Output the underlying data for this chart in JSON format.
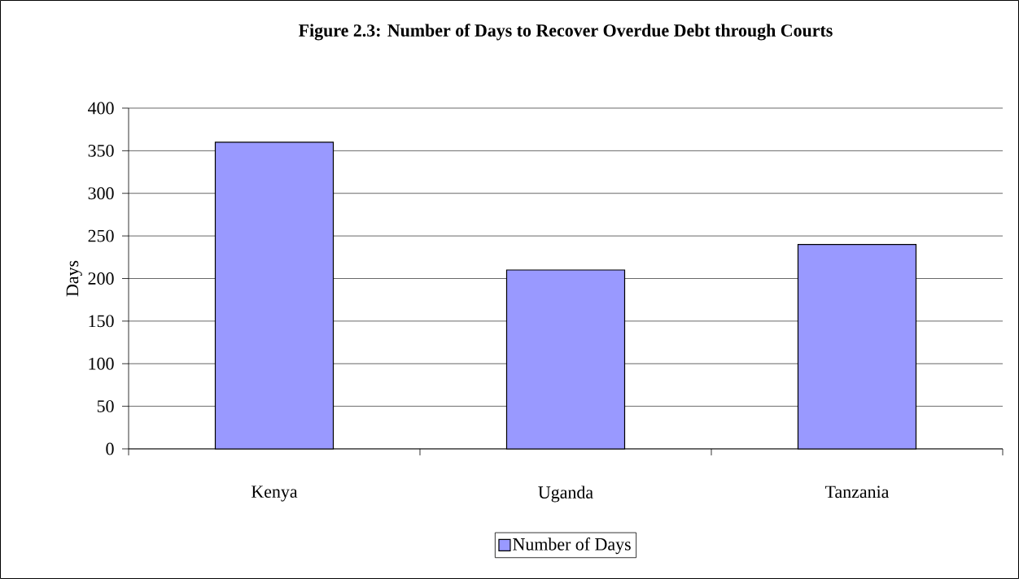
{
  "chart_data": {
    "type": "bar",
    "title": "Figure 2.3: Number of Days to Recover Overdue Debt through Courts",
    "ylabel": "Days",
    "categories": [
      "Kenya",
      "Uganda",
      "Tanzania"
    ],
    "series": [
      {
        "name": "Number of Days",
        "color": "#9999ff",
        "values": [
          360,
          210,
          240
        ]
      }
    ],
    "ylim": [
      0,
      400
    ],
    "yticks": [
      0,
      50,
      100,
      150,
      200,
      250,
      300,
      350,
      400
    ],
    "grid": "y",
    "legend": "bottom"
  }
}
